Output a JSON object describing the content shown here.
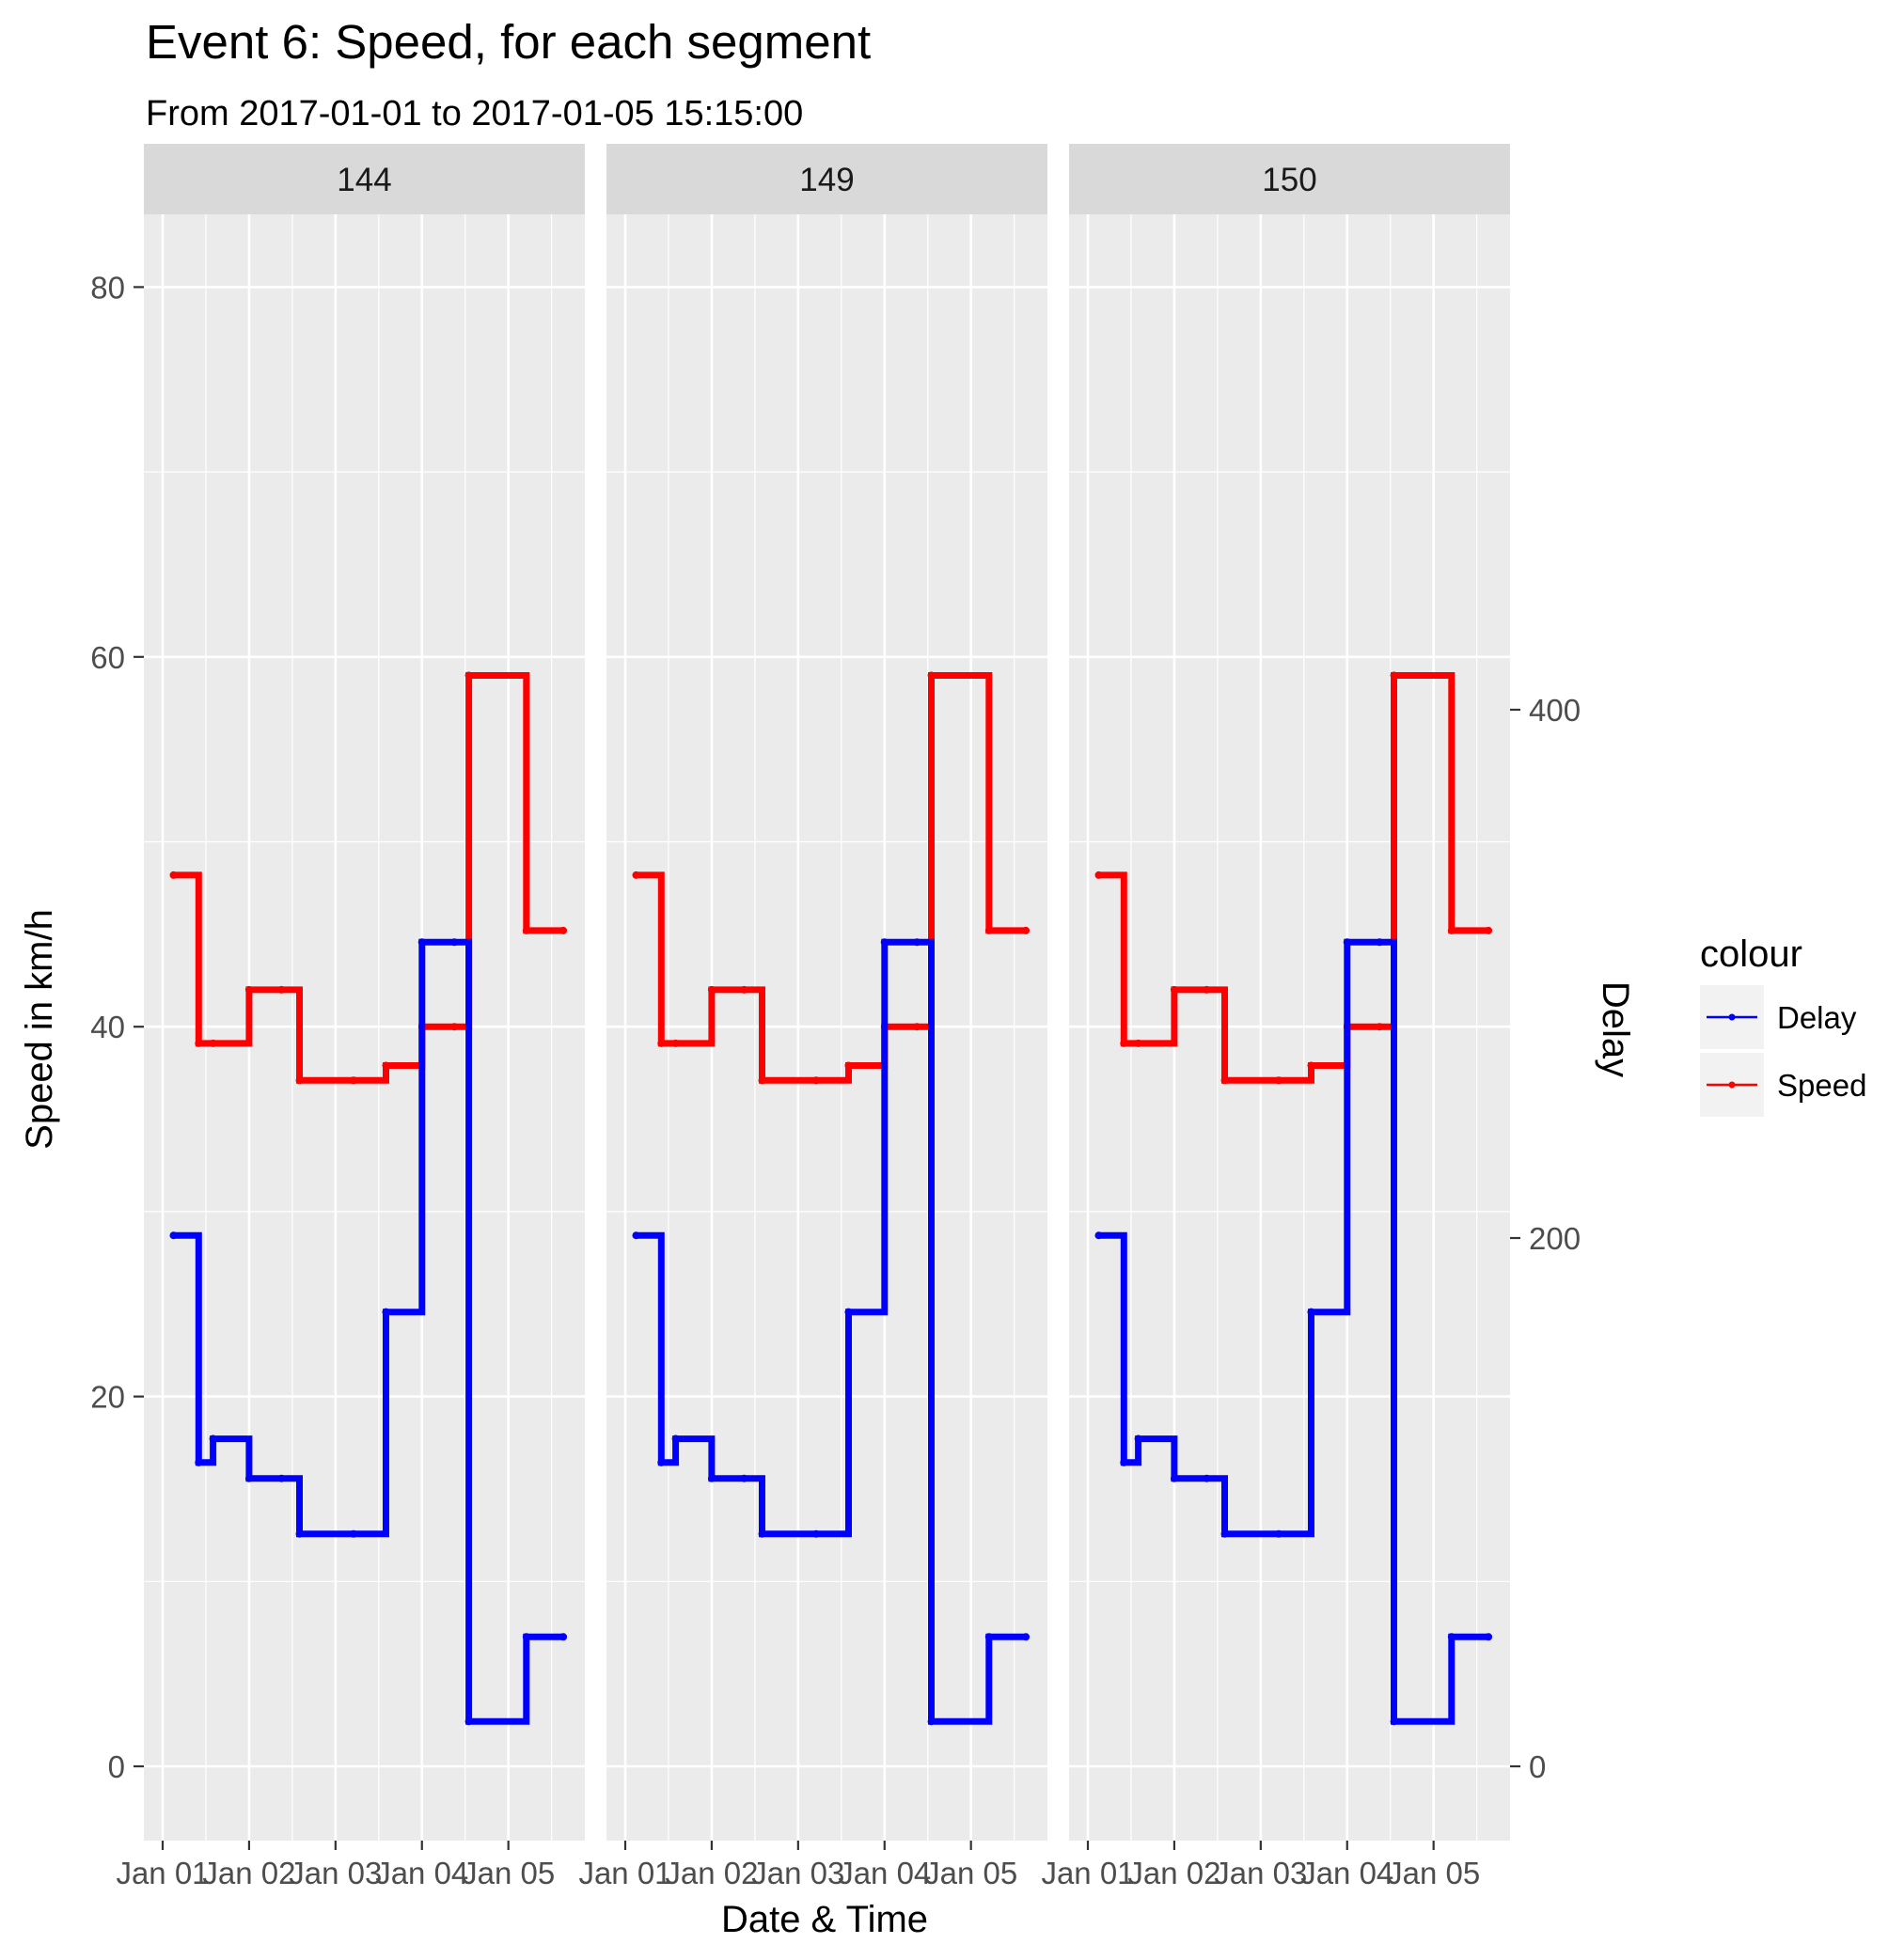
{
  "chart_data": {
    "type": "line",
    "step": true,
    "title": "Event 6: Speed, for each segment",
    "subtitle": "From 2017-01-01 to 2017-01-05 15:15:00",
    "xlabel": "Date & Time",
    "ylabel": "Speed in km/h",
    "y2label": "Delay",
    "x_ticks": [
      "Jan 01",
      "Jan 02",
      "Jan 03",
      "Jan 04",
      "Jan 05"
    ],
    "y_ticks": [
      0,
      20,
      40,
      60,
      80
    ],
    "y2_ticks": [
      0,
      200,
      400
    ],
    "ylim": [
      -4,
      84
    ],
    "grid": true,
    "legend": {
      "title": "colour",
      "position": "right",
      "entries": [
        {
          "label": "Delay",
          "color": "#0000ff"
        },
        {
          "label": "Speed",
          "color": "#ff0000"
        }
      ]
    },
    "colors": {
      "Delay": "#0000ff",
      "Speed": "#ff0000"
    },
    "x_times": [
      "2017-01-01 03:00",
      "2017-01-01 10:00",
      "2017-01-01 14:00",
      "2017-01-02 00:00",
      "2017-01-02 09:00",
      "2017-01-02 14:00",
      "2017-01-03 05:00",
      "2017-01-03 14:00",
      "2017-01-04 00:00",
      "2017-01-04 09:00",
      "2017-01-04 13:00",
      "2017-01-05 05:00",
      "2017-01-05 15:15"
    ],
    "panels": [
      {
        "label": "144",
        "series": [
          {
            "name": "Speed",
            "values": [
              48.2,
              39.1,
              39.1,
              42.0,
              42.0,
              37.1,
              37.1,
              37.9,
              40.0,
              40.0,
              59.0,
              45.2,
              45.2
            ]
          },
          {
            "name": "Delay",
            "values": [
              201,
              115,
              124,
              109,
              109,
              88,
              88,
              172,
              312,
              312,
              17,
              49,
              49
            ]
          }
        ]
      },
      {
        "label": "149",
        "series": [
          {
            "name": "Speed",
            "values": [
              48.2,
              39.1,
              39.1,
              42.0,
              42.0,
              37.1,
              37.1,
              37.9,
              40.0,
              40.0,
              59.0,
              45.2,
              45.2
            ]
          },
          {
            "name": "Delay",
            "values": [
              201,
              115,
              124,
              109,
              109,
              88,
              88,
              172,
              312,
              312,
              17,
              49,
              49
            ]
          }
        ]
      },
      {
        "label": "150",
        "series": [
          {
            "name": "Speed",
            "values": [
              48.2,
              39.1,
              39.1,
              42.0,
              42.0,
              37.1,
              37.1,
              37.9,
              40.0,
              40.0,
              59.0,
              45.2,
              45.2
            ]
          },
          {
            "name": "Delay",
            "values": [
              201,
              115,
              124,
              109,
              109,
              88,
              88,
              172,
              312,
              312,
              17,
              49,
              49
            ]
          }
        ]
      }
    ]
  }
}
